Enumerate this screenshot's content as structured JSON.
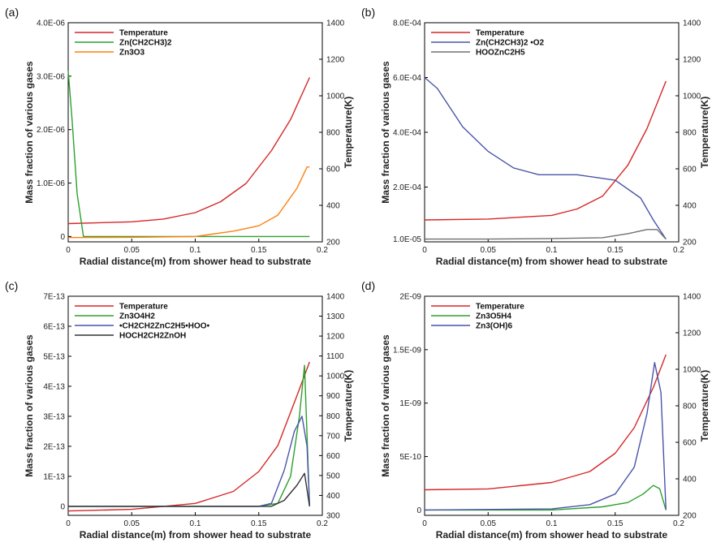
{
  "chart_data": [
    {
      "panel": "(a)",
      "type": "line",
      "xlabel": "Radial distance(m) from shower head to substrate",
      "ylabel": "Mass fraction of various gases",
      "y2label": "Temperature(K)",
      "xticks": [
        "0",
        "0.05",
        "0.1",
        "0.15",
        "0.2"
      ],
      "yticks": [
        "0",
        "1.0E-06",
        "2.0E-06",
        "3.0E-06",
        "4.0E-06"
      ],
      "y2ticks": [
        "200",
        "400",
        "600",
        "800",
        "1000",
        "1200",
        "1400"
      ],
      "xlim": [
        0,
        0.2
      ],
      "ylim": [
        -1e-07,
        4e-06
      ],
      "y2lim": [
        200,
        1400
      ],
      "legend_position": "top-left",
      "series": [
        {
          "name": "Temperature",
          "color": "#d62728",
          "axis": "right",
          "x": [
            0,
            0.05,
            0.075,
            0.1,
            0.12,
            0.14,
            0.16,
            0.175,
            0.19
          ],
          "y": [
            300,
            310,
            325,
            360,
            420,
            520,
            700,
            870,
            1100
          ]
        },
        {
          "name": "Zn(CH2CH3)2",
          "color": "#2ca02c",
          "axis": "left",
          "x": [
            0,
            0.003,
            0.007,
            0.012,
            0.05,
            0.1,
            0.15,
            0.19
          ],
          "y": [
            3.1e-06,
            2.2e-06,
            8e-07,
            0,
            0,
            0,
            0,
            0
          ]
        },
        {
          "name": "Zn3O3",
          "color": "#ff7f0e",
          "axis": "left",
          "x": [
            0,
            0.05,
            0.1,
            0.13,
            0.15,
            0.165,
            0.18,
            0.188,
            0.19
          ],
          "y": [
            -2e-08,
            -1.5e-08,
            0,
            1e-07,
            2e-07,
            4e-07,
            9e-07,
            1.3e-06,
            1.3e-06
          ]
        }
      ]
    },
    {
      "panel": "(b)",
      "type": "line",
      "xlabel": "Radial distance(m) from shower head to substrate",
      "ylabel": "Mass fraction of various gases",
      "y2label": "Temperature(K)",
      "xticks": [
        "0",
        "0.05",
        "0.1",
        "0.15",
        "0.2"
      ],
      "yticks": [
        "1.0E-05",
        "2.0E-04",
        "4.0E-04",
        "6.0E-04",
        "8.0E-04"
      ],
      "y2ticks": [
        "200",
        "400",
        "600",
        "800",
        "1000",
        "1200",
        "1400"
      ],
      "xlim": [
        0,
        0.2
      ],
      "ylim": [
        0,
        0.0008
      ],
      "y2lim": [
        200,
        1400
      ],
      "legend_position": "top-left",
      "series": [
        {
          "name": "Temperature",
          "color": "#d62728",
          "axis": "right",
          "x": [
            0,
            0.05,
            0.1,
            0.12,
            0.14,
            0.16,
            0.175,
            0.19
          ],
          "y": [
            320,
            325,
            345,
            380,
            450,
            620,
            820,
            1080
          ]
        },
        {
          "name": "Zn(CH2CH3)2 •O2",
          "color": "#4a55a8",
          "axis": "left",
          "x": [
            0,
            0.01,
            0.02,
            0.03,
            0.05,
            0.07,
            0.09,
            0.12,
            0.15,
            0.17,
            0.18,
            0.19
          ],
          "y": [
            0.0006,
            0.00056,
            0.00049,
            0.00042,
            0.00033,
            0.00027,
            0.000245,
            0.000245,
            0.000225,
            0.00016,
            8e-05,
            1e-05
          ]
        },
        {
          "name": "HOOZnC2H5",
          "color": "#707070",
          "axis": "left",
          "x": [
            0,
            0.05,
            0.1,
            0.14,
            0.16,
            0.175,
            0.183,
            0.19
          ],
          "y": [
            1e-05,
            1e-05,
            1.2e-05,
            1.5e-05,
            3e-05,
            4.5e-05,
            4.5e-05,
            1e-05
          ]
        }
      ]
    },
    {
      "panel": "(c)",
      "type": "line",
      "xlabel": "Radial distance(m) from shower head to substrate",
      "ylabel": "Mass fraction of various gases",
      "y2label": "Temperature(K)",
      "xticks": [
        "0",
        "0.05",
        "0.1",
        "0.15",
        "0.2"
      ],
      "yticks": [
        "0",
        "1E-13",
        "2E-13",
        "3E-13",
        "4E-13",
        "5E-13",
        "6E-13",
        "7E-13"
      ],
      "y2ticks": [
        "300",
        "400",
        "500",
        "600",
        "700",
        "800",
        "900",
        "1000",
        "1100",
        "1200",
        "1300",
        "1400"
      ],
      "xlim": [
        0,
        0.2
      ],
      "ylim": [
        -3e-14,
        7e-13
      ],
      "y2lim": [
        300,
        1400
      ],
      "legend_position": "top-left",
      "series": [
        {
          "name": "Temperature",
          "color": "#d62728",
          "axis": "right",
          "x": [
            0,
            0.05,
            0.1,
            0.13,
            0.15,
            0.165,
            0.18,
            0.19
          ],
          "y": [
            322,
            330,
            360,
            420,
            520,
            650,
            900,
            1070
          ]
        },
        {
          "name": "Zn3O4H2",
          "color": "#2ca02c",
          "axis": "left",
          "x": [
            0,
            0.15,
            0.165,
            0.175,
            0.182,
            0.186,
            0.19
          ],
          "y": [
            0,
            0,
            1e-14,
            1e-13,
            3e-13,
            4.7e-13,
            0
          ]
        },
        {
          "name": "•CH2CH2ZnC2H5•HOO•",
          "color": "#4a55a8",
          "axis": "left",
          "x": [
            0,
            0.15,
            0.16,
            0.17,
            0.178,
            0.184,
            0.188,
            0.19
          ],
          "y": [
            0,
            0,
            1e-14,
            1.2e-13,
            2.5e-13,
            3e-13,
            2e-13,
            0
          ]
        },
        {
          "name": "HOCH2CH2ZnOH",
          "color": "#333333",
          "axis": "left",
          "x": [
            0,
            0.16,
            0.17,
            0.18,
            0.186,
            0.19
          ],
          "y": [
            0,
            0,
            2e-14,
            7e-14,
            1.1e-13,
            0
          ]
        }
      ]
    },
    {
      "panel": "(d)",
      "type": "line",
      "xlabel": "Radial distance(m) from shower head to substrate",
      "ylabel": "Mass fraction of various gases",
      "y2label": "Temperature(K)",
      "xticks": [
        "0",
        "0.05",
        "0.1",
        "0.15",
        "0.2"
      ],
      "yticks": [
        "0",
        "5E-10",
        "1E-09",
        "1.5E-09",
        "2E-09"
      ],
      "y2ticks": [
        "200",
        "400",
        "600",
        "800",
        "1000",
        "1200",
        "1400"
      ],
      "xlim": [
        0,
        0.2
      ],
      "ylim": [
        -5e-11,
        2e-09
      ],
      "y2lim": [
        200,
        1400
      ],
      "legend_position": "top-left",
      "series": [
        {
          "name": "Temperature",
          "color": "#d62728",
          "axis": "right",
          "x": [
            0,
            0.05,
            0.1,
            0.13,
            0.15,
            0.165,
            0.18,
            0.19
          ],
          "y": [
            340,
            345,
            380,
            440,
            540,
            680,
            900,
            1080
          ]
        },
        {
          "name": "Zn3O5H4",
          "color": "#2ca02c",
          "axis": "left",
          "x": [
            0,
            0.1,
            0.14,
            0.16,
            0.172,
            0.18,
            0.185,
            0.19
          ],
          "y": [
            0,
            0,
            3e-11,
            7e-11,
            1.5e-10,
            2.3e-10,
            2e-10,
            0
          ]
        },
        {
          "name": "Zn3(OH)6",
          "color": "#4a55a8",
          "axis": "left",
          "x": [
            0,
            0.1,
            0.13,
            0.15,
            0.165,
            0.175,
            0.181,
            0.186,
            0.19
          ],
          "y": [
            0,
            1e-11,
            5e-11,
            1.5e-10,
            4e-10,
            9e-10,
            1.38e-09,
            1.1e-09,
            0
          ]
        }
      ]
    }
  ]
}
